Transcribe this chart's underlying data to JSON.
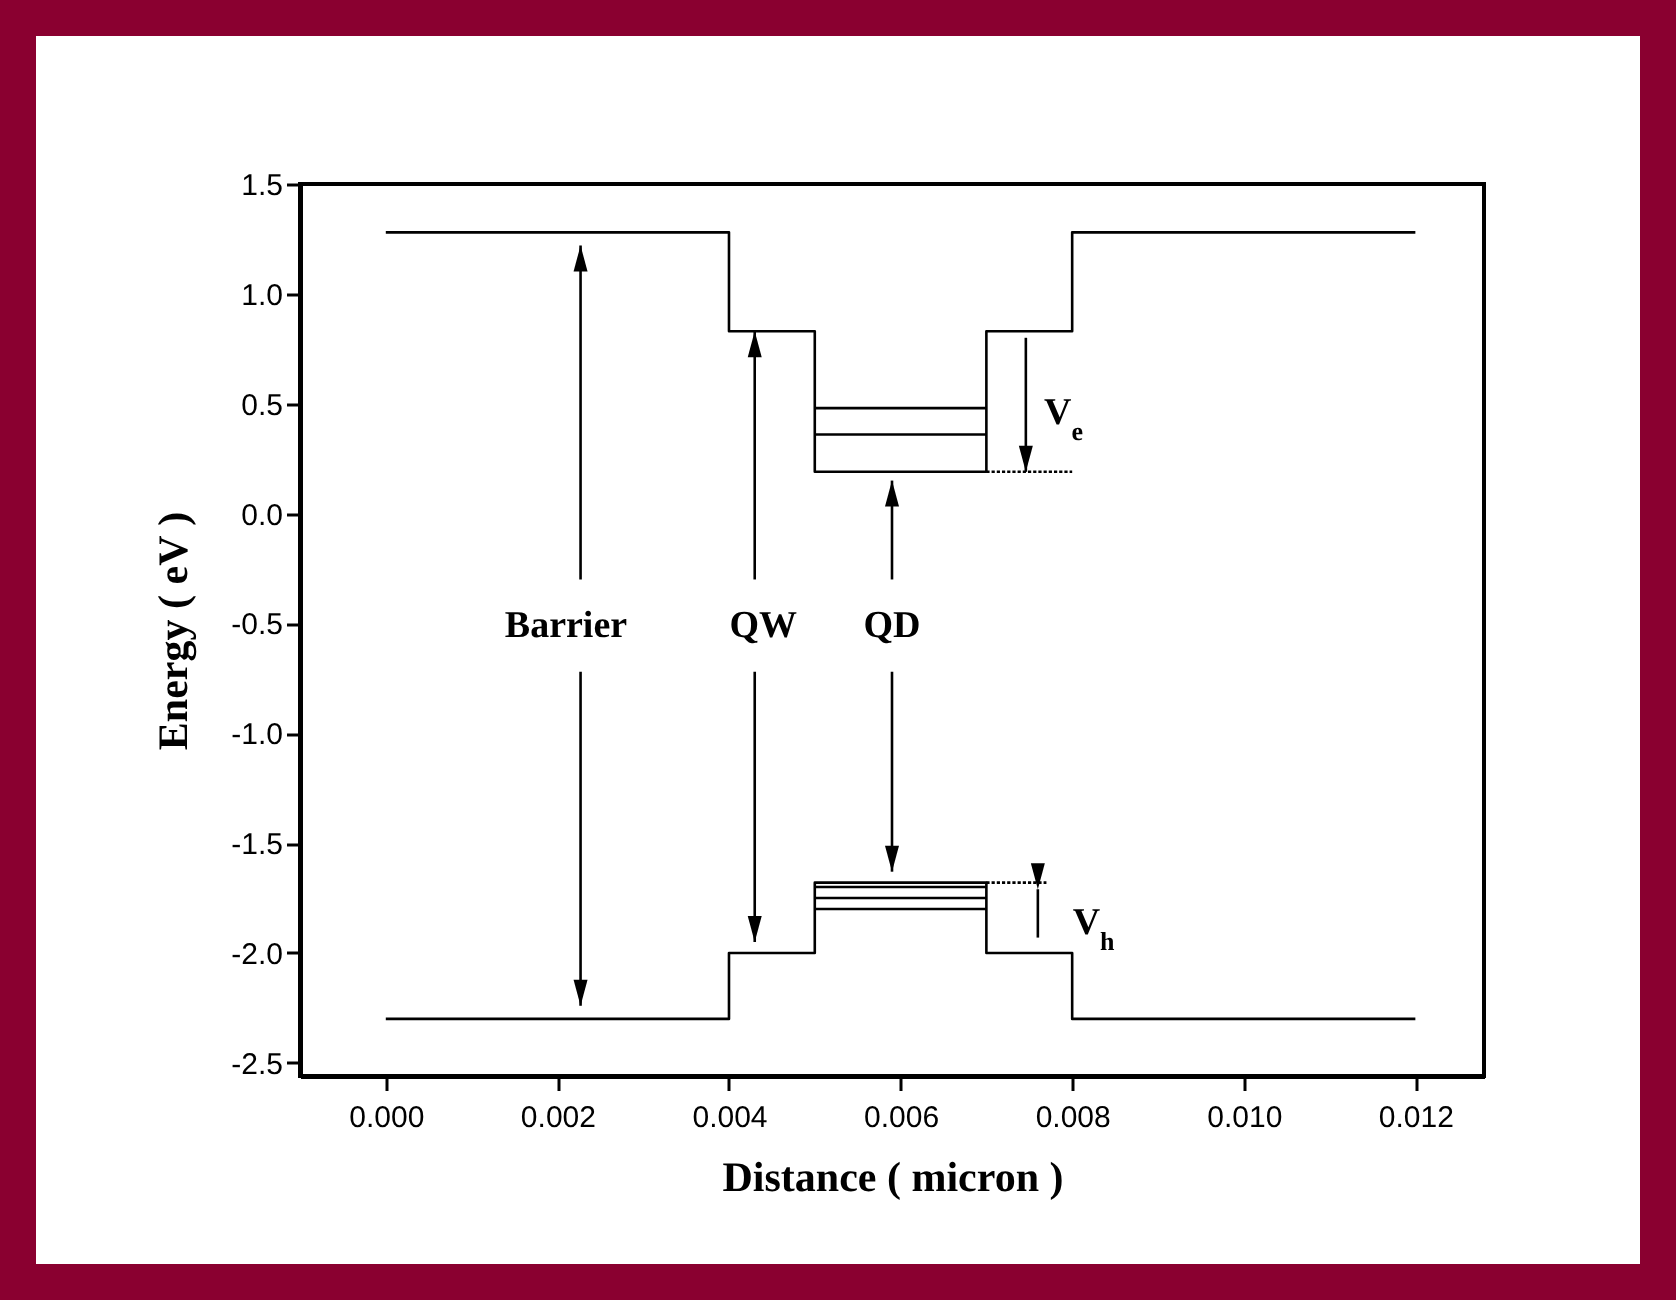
{
  "chart_data": {
    "type": "line",
    "xlabel": "Distance  ( micron )",
    "ylabel": "Energy   ( eV )",
    "xlim": [
      -0.001,
      0.0128
    ],
    "xticks": [
      {
        "value": 0,
        "label": "0.000"
      },
      0.002,
      0.004,
      0.006,
      0.008,
      {
        "value": 0.01,
        "label": "0.010"
      },
      0.012
    ],
    "ylim": [
      -2.56,
      1.5
    ],
    "yticks": [
      -2.5,
      {
        "value": -2,
        "label": "-2.0"
      },
      -1.5,
      {
        "value": -1,
        "label": "-1.0"
      },
      -0.5,
      {
        "value": 0,
        "label": "0.0"
      },
      0.5,
      {
        "value": 1,
        "label": "1.0"
      },
      1.5
    ],
    "grid": false,
    "marker": "none",
    "line_style": "solid",
    "series": [
      {
        "color": "#000000",
        "x": [
          0,
          0.004,
          0.004,
          0.005,
          0.005,
          0.007,
          0.007,
          0.008,
          0.008,
          0.012
        ],
        "values": [
          1.28,
          1.28,
          0.83,
          0.83,
          0.19,
          0.19,
          0.83,
          0.83,
          1.28,
          1.28
        ]
      },
      {
        "color": "#000000",
        "x": [
          0,
          0.004,
          0.004,
          0.005,
          0.005,
          0.007,
          0.007,
          0.008,
          0.008,
          0.012
        ],
        "values": [
          -2.3,
          -2.3,
          -2.0,
          -2.0,
          -1.68,
          -1.68,
          -2.0,
          -2.0,
          -2.3,
          -2.3
        ]
      },
      {
        "color": "#000000",
        "x": [
          0.005,
          0.007
        ],
        "values": [
          0.36,
          0.36
        ]
      },
      {
        "color": "#000000",
        "x": [
          0.005,
          0.007
        ],
        "values": [
          0.48,
          0.48
        ]
      },
      {
        "color": "#000000",
        "x": [
          0.005,
          0.007
        ],
        "values": [
          -1.7,
          -1.7
        ]
      },
      {
        "color": "#000000",
        "x": [
          0.005,
          0.007
        ],
        "values": [
          -1.75,
          -1.75
        ]
      },
      {
        "color": "#000000",
        "x": [
          0.005,
          0.007
        ],
        "values": [
          -1.8,
          -1.8
        ]
      },
      {
        "color": "#000000",
        "line_style": "dotted",
        "x": [
          0.007,
          0.008
        ],
        "values": [
          0.19,
          0.19
        ]
      },
      {
        "color": "#000000",
        "line_style": "dotted",
        "x": [
          0.007,
          0.0077
        ],
        "values": [
          -1.68,
          -1.68
        ]
      }
    ],
    "annotations": [
      "Barrier",
      {
        "text": "QW",
        "x": 0.0043,
        "y": 0.83
      },
      "QD",
      {
        "text": "V$_{e}$",
        "x": 0.00746,
        "y": 0.19
      },
      "V$_{h}$"
    ]
  }
}
